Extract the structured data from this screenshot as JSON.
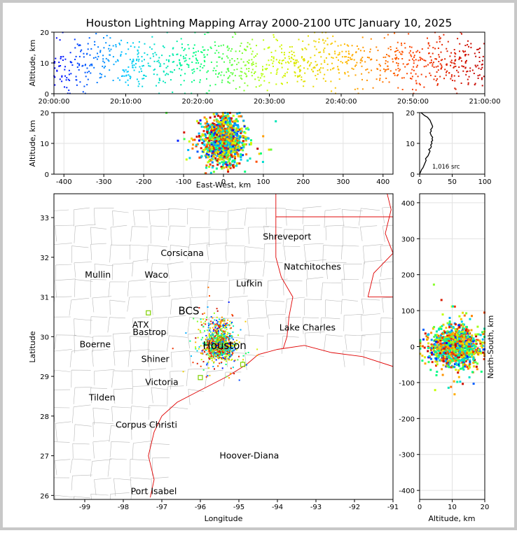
{
  "title": "Houston Lightning Mapping Array 2000-2100 UTC January 10, 2025",
  "colors": {
    "frame": "#c8c8c8",
    "map_state": "#e00000",
    "map_county": "#b8b8b8",
    "grid": "#dddddd"
  },
  "chart_data": [
    {
      "id": "time-altitude",
      "type": "scatter",
      "xlabel": "",
      "ylabel": "Altitude, km",
      "x_ticks": [
        "20:00:00",
        "20:10:00",
        "20:20:00",
        "20:30:00",
        "20:40:00",
        "20:50:00",
        "21:00:00"
      ],
      "xlim": [
        "20:00:00",
        "21:00:00"
      ],
      "ylim": [
        0,
        20
      ],
      "y_ticks": [
        0,
        10,
        20
      ],
      "color_by": "time",
      "colormap": [
        "#0000ff",
        "#00c8ff",
        "#00ff80",
        "#c8ff00",
        "#ffc000",
        "#ff4000",
        "#c00000"
      ]
    },
    {
      "id": "east-west-altitude",
      "type": "scatter",
      "xlabel": "East-West, km",
      "ylabel": "Altitude, km",
      "x_ticks": [
        -400,
        -300,
        -200,
        -100,
        0,
        100,
        200,
        300,
        400
      ],
      "xlim": [
        -425,
        425
      ],
      "ylim": [
        0,
        20
      ],
      "y_ticks": [
        0,
        10,
        20
      ]
    },
    {
      "id": "altitude-histogram",
      "type": "line",
      "xlabel": "",
      "ylabel": "",
      "x_ticks": [
        0,
        50,
        100
      ],
      "xlim": [
        0,
        100
      ],
      "ylim": [
        0,
        20
      ],
      "y_ticks": [
        0,
        10,
        20
      ],
      "annotation": "1,016 src",
      "x": [
        1,
        2,
        3,
        5,
        6,
        7,
        8,
        9,
        10,
        9,
        11,
        13,
        14,
        15,
        16,
        14,
        17,
        18,
        17,
        19,
        18,
        20,
        19,
        20,
        18,
        17,
        16,
        18,
        17,
        19,
        20,
        19,
        18,
        17,
        16,
        14,
        12,
        8,
        5,
        2
      ],
      "y": [
        0.5,
        1,
        1.5,
        2,
        2.5,
        3,
        3.5,
        4,
        4.5,
        5,
        5.5,
        6,
        6.5,
        7,
        7.5,
        8,
        8.5,
        9,
        9.5,
        10,
        10.5,
        11,
        11.5,
        12,
        12.5,
        13,
        13.5,
        14,
        14.5,
        15,
        15.5,
        16,
        16.5,
        17,
        17.5,
        18,
        18.5,
        19,
        19.5,
        20
      ]
    },
    {
      "id": "plan-view",
      "type": "scatter",
      "xlabel": "Longitude",
      "ylabel": "Latitude",
      "x_ticks": [
        -99,
        -98,
        -97,
        -96,
        -95,
        -94,
        -93,
        -92,
        -91
      ],
      "y_ticks": [
        26,
        27,
        28,
        29,
        30,
        31,
        32,
        33
      ],
      "xlim": [
        -99.8,
        -91
      ],
      "ylim": [
        25.9,
        33.6
      ],
      "cities": [
        {
          "name": "Shreveport",
          "lon": -93.75,
          "lat": 32.52,
          "color": "#000000"
        },
        {
          "name": "Corsicana",
          "lon": -96.47,
          "lat": 32.1,
          "color": "#000000"
        },
        {
          "name": "Natchitoches",
          "lon": -93.09,
          "lat": 31.76,
          "color": "#000000"
        },
        {
          "name": "Mullin",
          "lon": -98.66,
          "lat": 31.56,
          "color": "#ff8040"
        },
        {
          "name": "Waco",
          "lon": -97.14,
          "lat": 31.56,
          "color": "#000000"
        },
        {
          "name": "Lufkin",
          "lon": -94.73,
          "lat": 31.34,
          "color": "#000000"
        },
        {
          "name": "BCS",
          "lon": -96.3,
          "lat": 30.63,
          "color": "#800000"
        },
        {
          "name": "ATX",
          "lon": -97.55,
          "lat": 30.3,
          "color": "#ff8040"
        },
        {
          "name": "Lake Charles",
          "lon": -93.22,
          "lat": 30.23,
          "color": "#000000"
        },
        {
          "name": "Bastrop",
          "lon": -97.32,
          "lat": 30.11,
          "color": "#000000"
        },
        {
          "name": "Houston",
          "lon": -95.37,
          "lat": 29.76,
          "color": "#ff8c00"
        },
        {
          "name": "Boerne",
          "lon": -98.73,
          "lat": 29.8,
          "color": "#000000"
        },
        {
          "name": "Shiner",
          "lon": -97.17,
          "lat": 29.43,
          "color": "#000000"
        },
        {
          "name": "Victoria",
          "lon": -97.0,
          "lat": 28.85,
          "color": "#000000"
        },
        {
          "name": "Tilden",
          "lon": -98.55,
          "lat": 28.46,
          "color": "#000000"
        },
        {
          "name": "Corpus Christi",
          "lon": -97.4,
          "lat": 27.78,
          "color": "#000000"
        },
        {
          "name": "Hoover-Diana",
          "lon": -94.73,
          "lat": 27.0,
          "color": "#0000d0"
        },
        {
          "name": "Port Isabel",
          "lon": -97.21,
          "lat": 26.1,
          "color": "#000000"
        }
      ]
    },
    {
      "id": "altitude-north-south",
      "type": "scatter",
      "xlabel": "Altitude, km",
      "ylabel": "North-South, km",
      "x_ticks": [
        0,
        10,
        20
      ],
      "xlim": [
        0,
        20
      ],
      "ylim": [
        -425,
        425
      ],
      "y_ticks": [
        -400,
        -300,
        -200,
        -100,
        0,
        100,
        200,
        300,
        400
      ]
    }
  ]
}
